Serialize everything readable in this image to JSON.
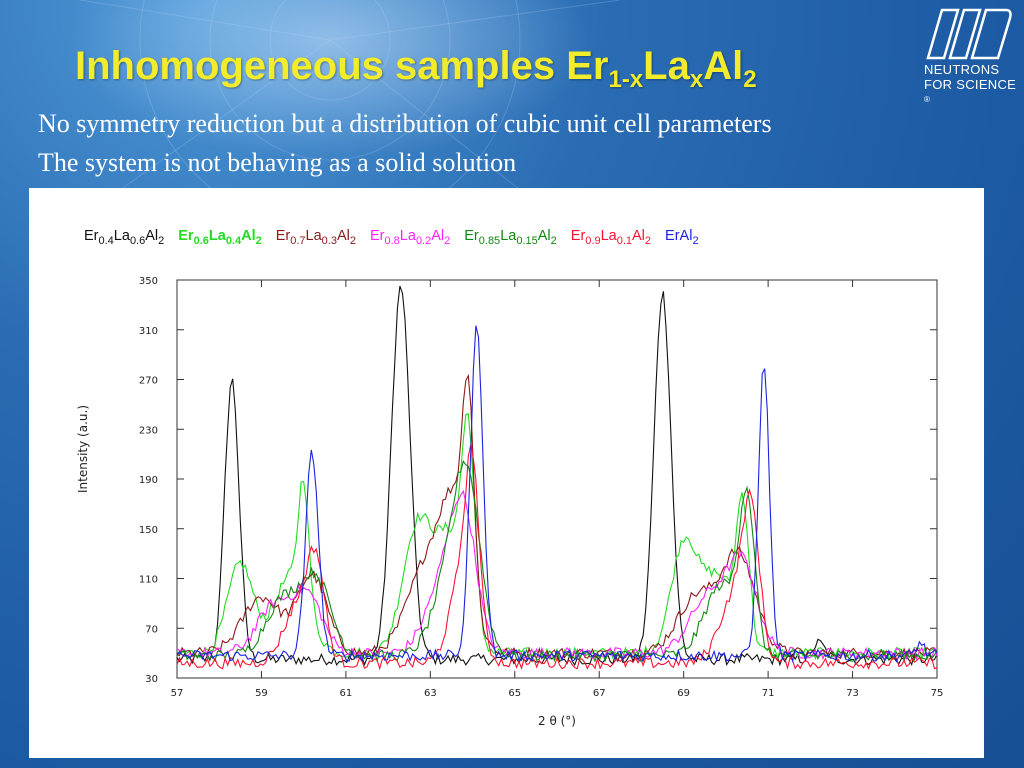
{
  "slide": {
    "title_main": "Inhomogeneous samples Er",
    "title_sub1": "1-x",
    "title_mid": "La",
    "title_sub2": "x",
    "title_end": "Al",
    "title_sub3": "2",
    "line1": "No symmetry reduction but a distribution of cubic unit cell parameters",
    "line2": "The system is not behaving as a solid solution",
    "logo_line1": "NEUTRONS",
    "logo_line2": "FOR SCIENCE",
    "logo_mark": "®"
  },
  "chart_data": {
    "type": "line",
    "title": "",
    "xlabel": "2 θ (°)",
    "ylabel": "Intensity (a.u.)",
    "xlim": [
      57,
      75
    ],
    "ylim": [
      30,
      350
    ],
    "xticks": [
      57,
      59,
      61,
      63,
      65,
      67,
      69,
      71,
      73,
      75
    ],
    "yticks": [
      30,
      70,
      110,
      150,
      190,
      230,
      270,
      310,
      350
    ],
    "series": [
      {
        "name": "Er0.4La0.6Al2",
        "label_parts": [
          "Er",
          "0.4",
          "La",
          "0.6",
          "Al",
          "2"
        ],
        "color": "#111111",
        "baseline": 45,
        "peaks": [
          [
            58.3,
            270,
            0.17
          ],
          [
            62.3,
            345,
            0.22
          ],
          [
            68.5,
            340,
            0.2
          ],
          [
            72.2,
            58,
            0.15
          ]
        ]
      },
      {
        "name": "Er0.6La0.4Al2",
        "label_parts": [
          "Er",
          "0.6",
          "La",
          "0.4",
          "Al",
          "2"
        ],
        "color": "#22dd22",
        "bold": true,
        "baseline": 50,
        "peaks": [
          [
            58.5,
            122,
            0.3
          ],
          [
            59.7,
            112,
            0.4
          ],
          [
            60.0,
            145,
            0.12
          ],
          [
            62.7,
            152,
            0.35
          ],
          [
            63.5,
            140,
            0.35
          ],
          [
            63.9,
            195,
            0.15
          ],
          [
            69.0,
            135,
            0.3
          ],
          [
            69.8,
            112,
            0.4
          ],
          [
            70.4,
            158,
            0.15
          ]
        ]
      },
      {
        "name": "Er0.7La0.3Al2",
        "label_parts": [
          "Er",
          "0.7",
          "La",
          "0.3",
          "Al",
          "2"
        ],
        "color": "#8b1a1a",
        "baseline": 50,
        "peaks": [
          [
            59.0,
            95,
            0.45
          ],
          [
            60.2,
            112,
            0.35
          ],
          [
            62.9,
            118,
            0.45
          ],
          [
            63.6,
            158,
            0.35
          ],
          [
            63.9,
            195,
            0.13
          ],
          [
            69.3,
            95,
            0.45
          ],
          [
            70.3,
            128,
            0.4
          ]
        ]
      },
      {
        "name": "Er0.8La0.2Al2",
        "label_parts": [
          "Er",
          "0.8",
          "La",
          "0.2",
          "Al",
          "2"
        ],
        "color": "#ff22ff",
        "baseline": 50,
        "peaks": [
          [
            59.3,
            88,
            0.4
          ],
          [
            60.1,
            95,
            0.35
          ],
          [
            63.3,
            105,
            0.4
          ],
          [
            63.8,
            150,
            0.3
          ],
          [
            69.6,
            95,
            0.45
          ],
          [
            70.4,
            118,
            0.35
          ]
        ]
      },
      {
        "name": "Er0.85La0.15Al2",
        "label_parts": [
          "Er",
          "0.85",
          "La",
          "0.15",
          "Al",
          "2"
        ],
        "color": "#118811",
        "baseline": 48,
        "peaks": [
          [
            59.5,
            92,
            0.4
          ],
          [
            60.3,
            108,
            0.35
          ],
          [
            63.5,
            115,
            0.4
          ],
          [
            63.9,
            160,
            0.3
          ],
          [
            69.9,
            105,
            0.4
          ],
          [
            70.5,
            165,
            0.18
          ]
        ]
      },
      {
        "name": "Er0.9La0.1Al2",
        "label_parts": [
          "Er",
          "0.9",
          "La",
          "0.1",
          "Al",
          "2"
        ],
        "color": "#ff1133",
        "baseline": 42,
        "peaks": [
          [
            59.9,
            90,
            0.35
          ],
          [
            60.3,
            108,
            0.2
          ],
          [
            63.8,
            122,
            0.3
          ],
          [
            64.0,
            150,
            0.15
          ],
          [
            70.2,
            95,
            0.35
          ],
          [
            70.6,
            148,
            0.2
          ]
        ]
      },
      {
        "name": "ErAl2",
        "label_parts": [
          "ErAl",
          "2",
          "",
          "",
          "",
          ""
        ],
        "color": "#1b22e0",
        "baseline": 48,
        "peaks": [
          [
            60.2,
            212,
            0.15
          ],
          [
            64.1,
            312,
            0.15
          ],
          [
            70.9,
            282,
            0.13
          ],
          [
            74.6,
            58,
            0.1
          ]
        ]
      }
    ]
  }
}
